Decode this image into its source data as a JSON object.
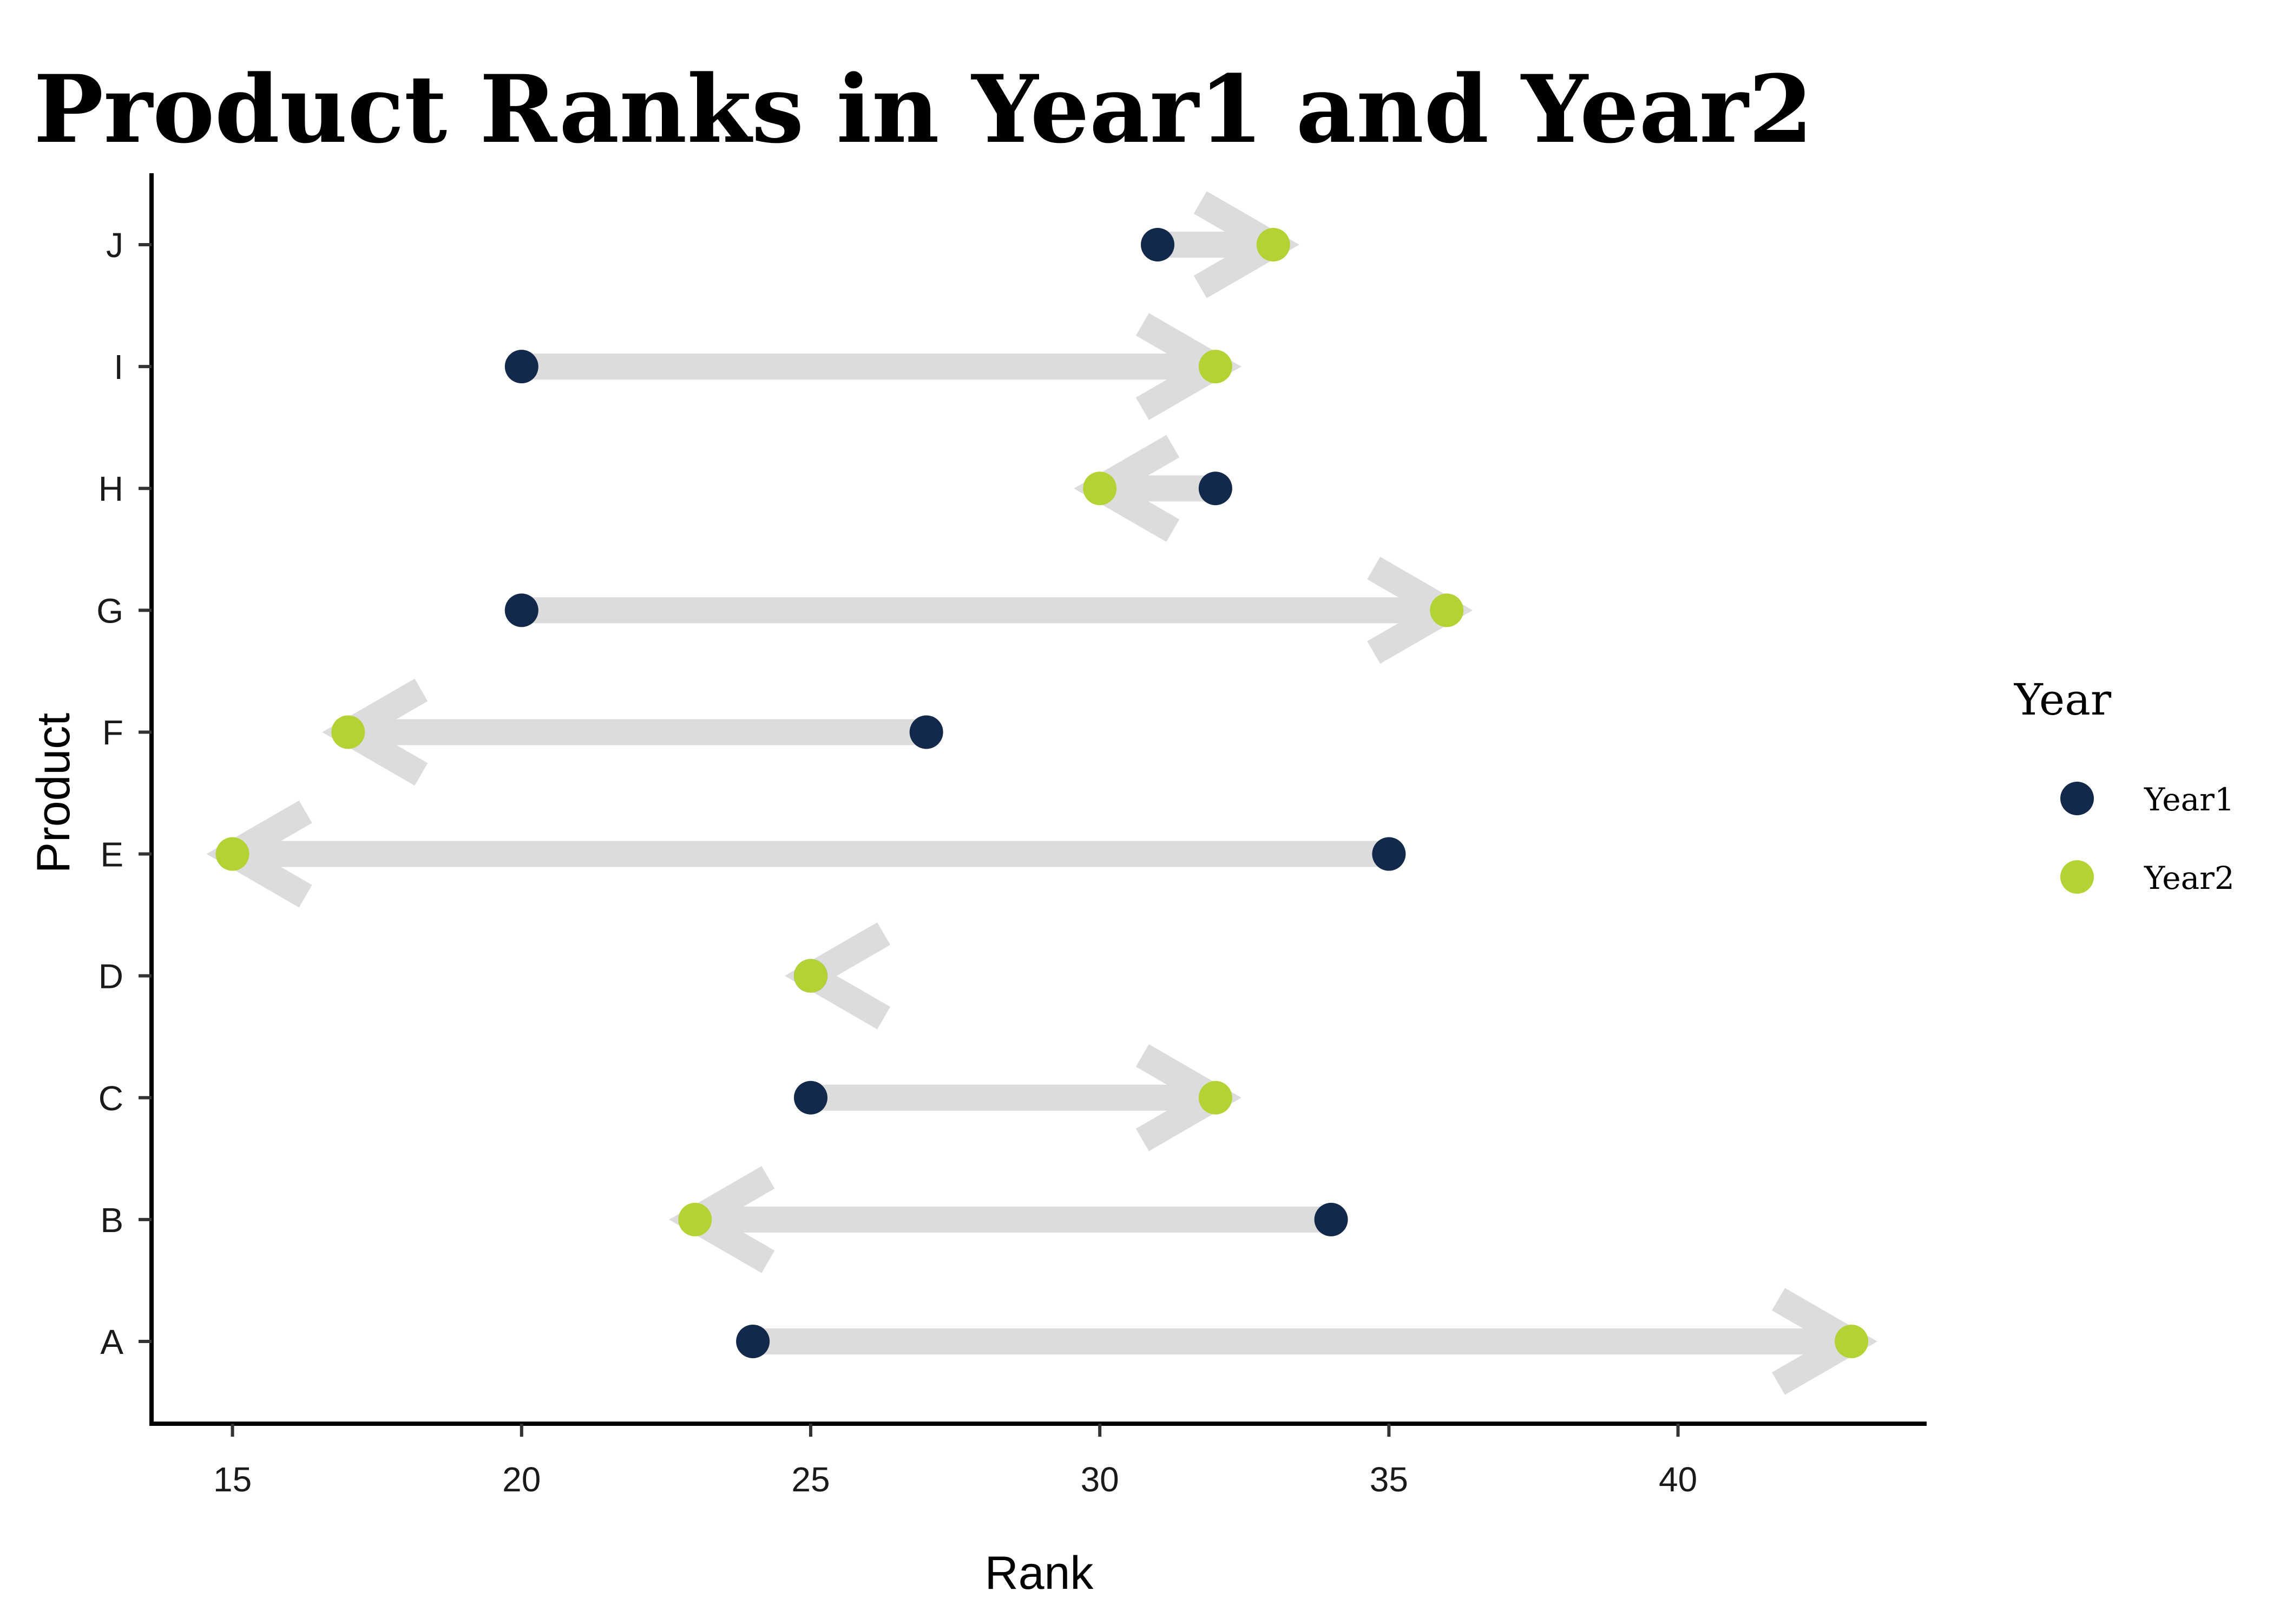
{
  "chart_data": {
    "type": "scatter",
    "title": "Product Ranks in Year1 and Year2",
    "xlabel": "Rank",
    "ylabel": "Product",
    "xlim": [
      13.6,
      44.3
    ],
    "x_ticks": [
      "15",
      "20",
      "25",
      "30",
      "35",
      "40"
    ],
    "categories": [
      "A",
      "B",
      "C",
      "D",
      "E",
      "F",
      "G",
      "H",
      "I",
      "J"
    ],
    "series": [
      {
        "name": "Year1",
        "color": "#13294b",
        "values": [
          24,
          34,
          25,
          25,
          35,
          27,
          20,
          32,
          20,
          31
        ]
      },
      {
        "name": "Year2",
        "color": "#b3d334",
        "values": [
          43,
          23,
          32,
          25,
          15,
          17,
          36,
          30,
          32,
          33
        ]
      }
    ],
    "arrow_color": "#dcdcdc",
    "legend": {
      "title": "Year",
      "position": "right"
    },
    "grid": false
  }
}
